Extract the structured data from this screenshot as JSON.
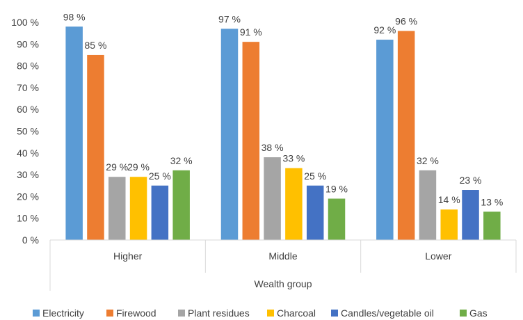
{
  "chart_data": {
    "type": "bar",
    "categories": [
      "Higher",
      "Middle",
      "Lower"
    ],
    "series": [
      {
        "name": "Electricity",
        "values": [
          98,
          97,
          92
        ],
        "color": "#5b9bd5"
      },
      {
        "name": "Firewood",
        "values": [
          85,
          91,
          96
        ],
        "color": "#ed7d31"
      },
      {
        "name": "Plant residues",
        "values": [
          29,
          38,
          32
        ],
        "color": "#a5a5a5"
      },
      {
        "name": "Charcoal",
        "values": [
          29,
          33,
          14
        ],
        "color": "#ffc000"
      },
      {
        "name": "Candles/vegetable oil",
        "values": [
          25,
          25,
          23
        ],
        "color": "#4472c4"
      },
      {
        "name": "Gas",
        "values": [
          32,
          19,
          13
        ],
        "color": "#70ad47"
      }
    ],
    "data_labels": [
      [
        "98 %",
        "97 %",
        "92 %"
      ],
      [
        "85 %",
        "91 %",
        "96 %"
      ],
      [
        "29 %",
        "38 %",
        "32 %"
      ],
      [
        "29 %",
        "33 %",
        "14 %"
      ],
      [
        "25 %",
        "25 %",
        "23 %"
      ],
      [
        "32 %",
        "19 %",
        "13 %"
      ]
    ],
    "y_ticks": [
      "0 %",
      "10 %",
      "20 %",
      "30 %",
      "40 %",
      "50 %",
      "60 %",
      "70 %",
      "80 %",
      "90 %",
      "100 %"
    ],
    "ylim": [
      0,
      100
    ],
    "xlabel": "Wealth group",
    "ylabel": "",
    "title": "",
    "grid": false,
    "legend_position": "bottom"
  }
}
